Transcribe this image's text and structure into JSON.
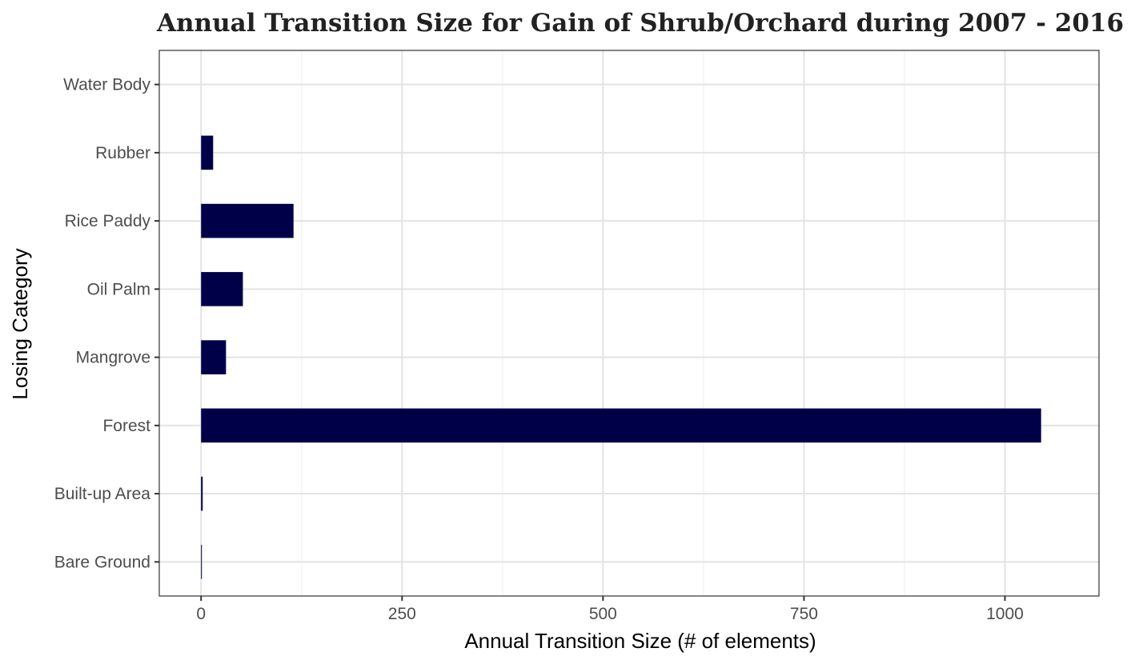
{
  "chart_data": {
    "type": "bar",
    "orientation": "horizontal",
    "title": "Annual Transition Size for Gain of  Shrub/Orchard during 2007 - 2016",
    "xlabel": "Annual Transition Size (# of elements)",
    "ylabel": "Losing Category",
    "categories": [
      "Bare Ground",
      "Built-up Area",
      "Forest",
      "Mangrove",
      "Oil Palm",
      "Rice Paddy",
      "Rubber",
      "Water Body"
    ],
    "values": [
      1,
      2,
      1045,
      31,
      52,
      115,
      15,
      0
    ],
    "xlim": [
      -52,
      1117
    ],
    "xticks": [
      0,
      250,
      500,
      750,
      1000
    ],
    "xtick_labels": [
      "0",
      "250",
      "500",
      "750",
      "1000"
    ],
    "grid": true,
    "bar_color": "#000048",
    "panel_border_color": "#333333",
    "grid_major_color": "#e3e3e3",
    "grid_minor_color": "#f0f0f0"
  }
}
